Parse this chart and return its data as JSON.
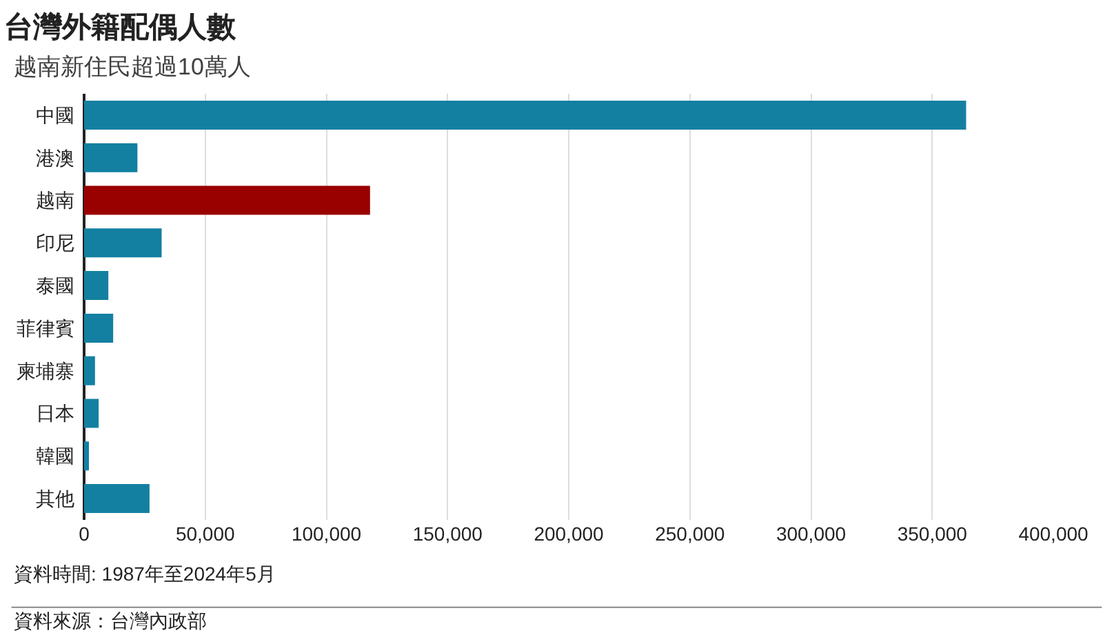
{
  "chart_data": {
    "type": "bar",
    "orientation": "horizontal",
    "title": "台灣外籍配偶人數",
    "subtitle": "越南新住民超過10萬人",
    "categories": [
      "中國",
      "港澳",
      "越南",
      "印尼",
      "泰國",
      "菲律賓",
      "柬埔寨",
      "日本",
      "韓國",
      "其他"
    ],
    "values": [
      364000,
      22000,
      118000,
      32000,
      10000,
      12000,
      4500,
      6000,
      2000,
      27000
    ],
    "colors": [
      "#1380a1",
      "#1380a1",
      "#990000",
      "#1380a1",
      "#1380a1",
      "#1380a1",
      "#1380a1",
      "#1380a1",
      "#1380a1",
      "#1380a1"
    ],
    "xlim": [
      0,
      400000
    ],
    "xticks": [
      0,
      {
        "value": 50000,
        "label": "50,000"
      },
      {
        "value": 100000,
        "label": "100,000"
      },
      {
        "value": 150000,
        "label": "150,000"
      },
      {
        "value": 200000,
        "label": "200,000"
      },
      {
        "value": 250000,
        "label": "250,000"
      },
      {
        "value": 300000,
        "label": "300,000"
      },
      {
        "value": 350000,
        "label": "350,000"
      },
      {
        "value": 400000,
        "label": "400,000"
      }
    ],
    "grid": "x",
    "legend": false,
    "annotations": [
      "資料時間: 1987年至2024年5月",
      "資料來源：台灣內政部"
    ]
  }
}
